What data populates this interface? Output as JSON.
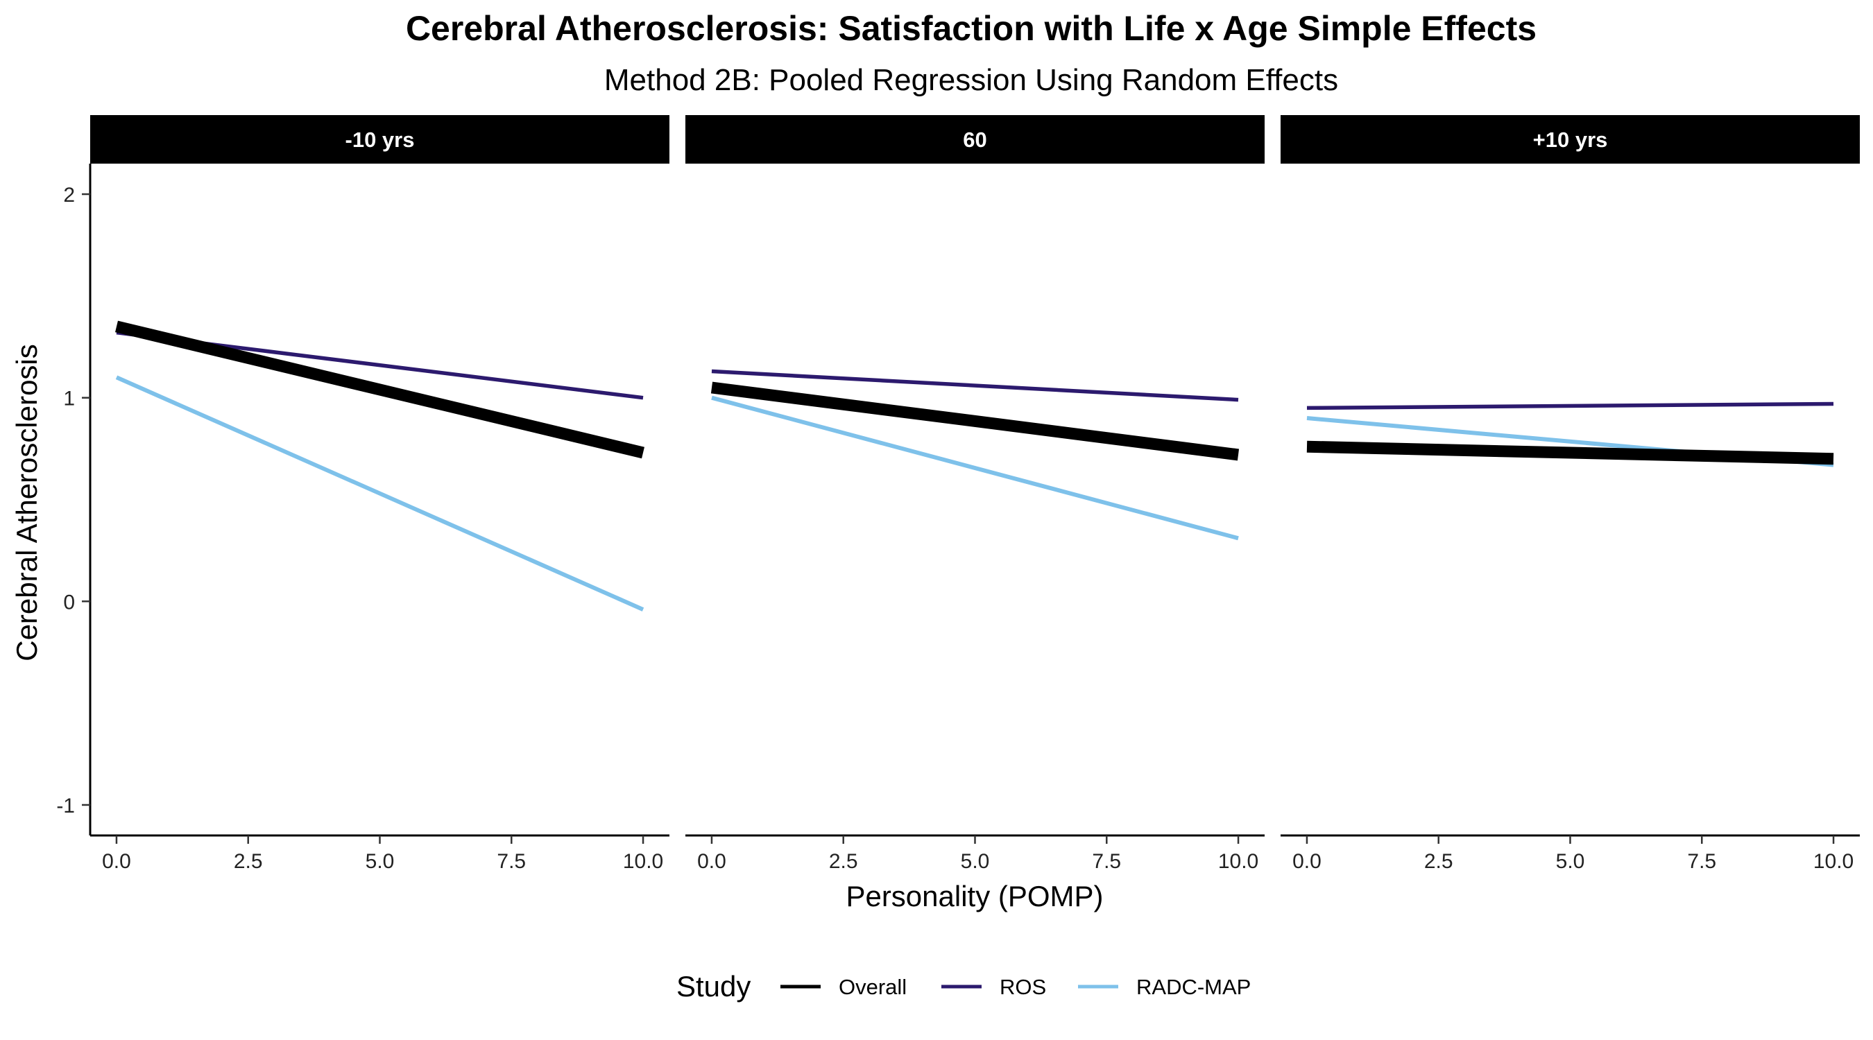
{
  "chart_data": {
    "type": "line",
    "title": "Cerebral Atherosclerosis: Satisfaction with Life x Age Simple Effects",
    "subtitle": "Method 2B: Pooled Regression Using Random Effects",
    "xlabel": "Personality (POMP)",
    "ylabel": "Cerebral Atherosclerosis",
    "xlim": [
      -0.5,
      10.5
    ],
    "ylim": [
      -1.15,
      2.15
    ],
    "x_ticks": [
      0.0,
      2.5,
      5.0,
      7.5,
      10.0
    ],
    "x_tick_labels": [
      "0.0",
      "2.5",
      "5.0",
      "7.5",
      "10.0"
    ],
    "y_ticks": [
      -1,
      0,
      1,
      2
    ],
    "y_tick_labels": [
      "-1",
      "0",
      "1",
      "2"
    ],
    "grid": false,
    "legend": {
      "title": "Study",
      "position": "bottom",
      "entries": [
        {
          "name": "Overall",
          "color": "#000000"
        },
        {
          "name": "ROS",
          "color": "#2c1a6e"
        },
        {
          "name": "RADC-MAP",
          "color": "#7ec1ea"
        }
      ]
    },
    "panels": [
      {
        "label": "-10 yrs",
        "series": [
          {
            "name": "Overall",
            "x": [
              0,
              10
            ],
            "y": [
              1.35,
              0.73
            ]
          },
          {
            "name": "ROS",
            "x": [
              0,
              10
            ],
            "y": [
              1.32,
              1.0
            ]
          },
          {
            "name": "RADC-MAP",
            "x": [
              0,
              10
            ],
            "y": [
              1.1,
              -0.04
            ]
          }
        ]
      },
      {
        "label": "60",
        "series": [
          {
            "name": "Overall",
            "x": [
              0,
              10
            ],
            "y": [
              1.05,
              0.72
            ]
          },
          {
            "name": "ROS",
            "x": [
              0,
              10
            ],
            "y": [
              1.13,
              0.99
            ]
          },
          {
            "name": "RADC-MAP",
            "x": [
              0,
              10
            ],
            "y": [
              1.0,
              0.31
            ]
          }
        ]
      },
      {
        "label": "+10 yrs",
        "series": [
          {
            "name": "Overall",
            "x": [
              0,
              10
            ],
            "y": [
              0.76,
              0.7
            ]
          },
          {
            "name": "ROS",
            "x": [
              0,
              10
            ],
            "y": [
              0.95,
              0.97
            ]
          },
          {
            "name": "RADC-MAP",
            "x": [
              0,
              10
            ],
            "y": [
              0.9,
              0.67
            ]
          }
        ]
      }
    ]
  }
}
